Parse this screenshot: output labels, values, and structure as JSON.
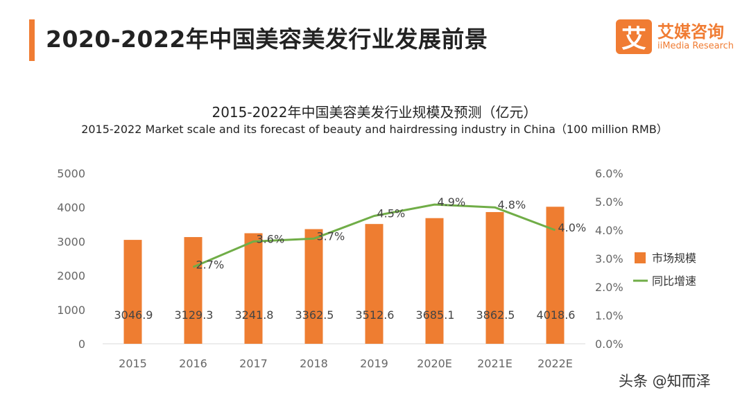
{
  "header": {
    "title": "2020-2022年中国美容美发行业发展前景"
  },
  "logo": {
    "mark": "艾",
    "name_cn": "艾媒咨询",
    "name_en": "iiMedia Research"
  },
  "watermark": "头条 @知而泽",
  "colors": {
    "accent": "#f07c33",
    "bar": "#ee7d31",
    "line": "#70ad47",
    "axis_text": "#666666",
    "data_label": "#444444"
  },
  "chart_data": {
    "type": "bar",
    "title": "2015-2022年中国美容美发行业规模及预测（亿元）",
    "subtitle": "2015-2022 Market scale and its forecast of beauty and hairdressing industry in China（100 million RMB）",
    "categories": [
      "2015",
      "2016",
      "2017",
      "2018",
      "2019",
      "2020E",
      "2021E",
      "2022E"
    ],
    "series": [
      {
        "name": "市场规模",
        "type": "bar",
        "axis": "left",
        "values": [
          3046.9,
          3129.3,
          3241.8,
          3362.5,
          3512.6,
          3685.1,
          3862.5,
          4018.6
        ],
        "labels": [
          "3046.9",
          "3129.3",
          "3241.8",
          "3362.5",
          "3512.6",
          "3685.1",
          "3862.5",
          "4018.6"
        ]
      },
      {
        "name": "同比增速",
        "type": "line",
        "axis": "right",
        "values": [
          null,
          2.7,
          3.6,
          3.7,
          4.5,
          4.9,
          4.8,
          4.0
        ],
        "labels": [
          "",
          "2.7%",
          "3.6%",
          "3.7%",
          "4.5%",
          "4.9%",
          "4.8%",
          "4.0%"
        ]
      }
    ],
    "y_left": {
      "min": 0,
      "max": 5000,
      "ticks": [
        "0",
        "1000",
        "2000",
        "3000",
        "4000",
        "5000"
      ]
    },
    "y_right": {
      "min": 0,
      "max": 6,
      "ticks": [
        "0.0%",
        "1.0%",
        "2.0%",
        "3.0%",
        "4.0%",
        "5.0%",
        "6.0%"
      ]
    },
    "grid": false,
    "legend_position": "right"
  }
}
